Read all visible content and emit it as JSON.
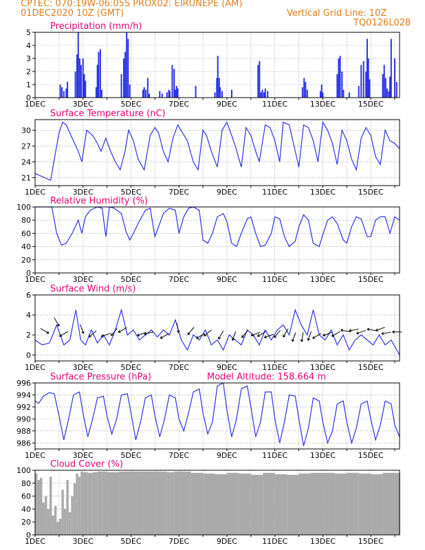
{
  "header": {
    "line1": "CPTEC:   070:19W-06:05S   PROX02: EIRUNEPE (AM)",
    "line2_left": "01DEC2020 10Z (GMT)",
    "line2_right": "Vertical Grid Line: 10Z",
    "line3_right": "TQ0126L028"
  },
  "colors": {
    "header": "#e07b1a",
    "title": "#e0007a",
    "series": "#2a32e6",
    "cloud": "#aaaaaa",
    "axis": "#000000"
  },
  "chart_data": [
    {
      "type": "bar",
      "title": "Precipitation (mm/h)",
      "x_ticks": [
        "1DEC",
        "3DEC",
        "5DEC",
        "7DEC",
        "9DEC",
        "11DEC",
        "13DEC",
        "15DEC"
      ],
      "x_tick_days": [
        1,
        3,
        5,
        7,
        9,
        11,
        13,
        15
      ],
      "x_range_days": [
        1,
        16.2
      ],
      "ylim": [
        0,
        5
      ],
      "y_ticks": [
        0,
        1,
        2,
        3,
        4,
        5
      ],
      "x_days": [
        2.05,
        2.12,
        2.2,
        2.3,
        2.35,
        2.68,
        2.75,
        2.8,
        2.86,
        2.92,
        3.0,
        3.05,
        3.1,
        3.55,
        3.6,
        3.65,
        3.72,
        3.78,
        4.6,
        4.7,
        4.76,
        4.82,
        4.88,
        4.95,
        5.5,
        5.55,
        5.62,
        5.7,
        5.76,
        6.2,
        6.3,
        6.5,
        6.58,
        6.62,
        6.72,
        6.8,
        6.85,
        6.9,
        6.95,
        7.7,
        8.5,
        8.58,
        8.62,
        8.68,
        8.72,
        8.8,
        9.2,
        10.3,
        10.36,
        10.42,
        10.48,
        10.55,
        10.6,
        10.7,
        12.15,
        12.22,
        12.28,
        12.35,
        12.9,
        12.95,
        13.0,
        13.6,
        13.66,
        13.72,
        13.8,
        13.86,
        14.1,
        14.5,
        14.6,
        14.7,
        14.8,
        14.85,
        14.9,
        14.95,
        15.5,
        15.56,
        15.62,
        15.68,
        15.75,
        15.8,
        15.85,
        16.0,
        16.08
      ],
      "values": [
        1.0,
        0.8,
        0.5,
        0.7,
        1.2,
        2.0,
        3.3,
        5.0,
        3.0,
        2.5,
        3.0,
        1.8,
        1.3,
        0.8,
        2.5,
        3.5,
        3.7,
        0.6,
        1.8,
        3.0,
        3.5,
        5.0,
        4.5,
        1.0,
        0.6,
        0.8,
        0.6,
        1.5,
        0.3,
        0.5,
        0.3,
        0.4,
        0.6,
        0.5,
        2.5,
        2.2,
        0.6,
        0.9,
        0.7,
        0.9,
        0.4,
        1.5,
        3.2,
        1.5,
        0.8,
        0.5,
        0.6,
        2.5,
        2.8,
        0.4,
        0.6,
        0.4,
        0.7,
        0.5,
        0.8,
        1.5,
        1.2,
        0.6,
        0.5,
        1.0,
        0.4,
        1.8,
        3.0,
        3.2,
        2.0,
        0.6,
        0.4,
        0.9,
        2.5,
        2.8,
        2.0,
        4.5,
        3.0,
        1.4,
        1.8,
        2.5,
        1.5,
        0.7,
        0.5,
        1.6,
        4.5,
        3.0,
        1.2
      ]
    },
    {
      "type": "line",
      "title": "Surface Temperature (nC)",
      "x_ticks": [
        "1DEC",
        "3DEC",
        "5DEC",
        "7DEC",
        "9DEC",
        "11DEC",
        "13DEC",
        "15DEC"
      ],
      "x_tick_days": [
        1,
        3,
        5,
        7,
        9,
        11,
        13,
        15
      ],
      "x_range_days": [
        1,
        16.2
      ],
      "ylim": [
        19.5,
        32
      ],
      "y_ticks": [
        21,
        24,
        27,
        30
      ],
      "x_days": [
        1,
        1.3,
        1.5,
        1.65,
        1.8,
        2.0,
        2.15,
        2.3,
        2.55,
        2.8,
        2.95,
        3.15,
        3.4,
        3.6,
        3.75,
        3.95,
        4.15,
        4.35,
        4.55,
        4.75,
        4.9,
        5.1,
        5.3,
        5.55,
        5.8,
        6.0,
        6.15,
        6.35,
        6.55,
        6.75,
        6.95,
        7.15,
        7.35,
        7.6,
        7.8,
        8.0,
        8.15,
        8.35,
        8.6,
        8.8,
        9.0,
        9.2,
        9.35,
        9.6,
        9.8,
        10.0,
        10.2,
        10.35,
        10.6,
        10.8,
        11.0,
        11.2,
        11.35,
        11.6,
        11.8,
        12.0,
        12.2,
        12.4,
        12.6,
        12.8,
        13.0,
        13.2,
        13.4,
        13.6,
        13.8,
        14.0,
        14.2,
        14.4,
        14.6,
        14.8,
        15.0,
        15.2,
        15.4,
        15.6,
        15.8,
        16.0,
        16.2
      ],
      "values": [
        21.8,
        21.2,
        20.8,
        20.5,
        24.5,
        29.5,
        31.5,
        31.0,
        28.5,
        26.0,
        24.0,
        30.0,
        29.0,
        27.5,
        26.0,
        28.5,
        26.0,
        24.0,
        22.5,
        26.0,
        30.0,
        28.0,
        24.5,
        22.5,
        29.0,
        30.5,
        29.5,
        26.0,
        24.0,
        28.5,
        31.0,
        29.5,
        28.0,
        24.0,
        22.5,
        30.0,
        29.0,
        26.0,
        23.0,
        30.0,
        31.5,
        29.0,
        27.0,
        23.0,
        30.5,
        29.0,
        26.0,
        24.0,
        31.0,
        30.5,
        28.0,
        24.0,
        31.5,
        31.0,
        27.0,
        23.0,
        31.0,
        30.5,
        28.0,
        24.0,
        31.5,
        30.0,
        27.5,
        23.5,
        30.0,
        28.0,
        24.5,
        22.5,
        28.5,
        30.5,
        29.0,
        25.0,
        23.5,
        30.0,
        28.0,
        27.5,
        26.5
      ]
    },
    {
      "type": "line",
      "title": "Relative Humidity (%)",
      "x_ticks": [
        "1DEC",
        "3DEC",
        "5DEC",
        "7DEC",
        "9DEC",
        "11DEC",
        "13DEC",
        "15DEC"
      ],
      "x_tick_days": [
        1,
        3,
        5,
        7,
        9,
        11,
        13,
        15
      ],
      "x_range_days": [
        1,
        16.2
      ],
      "ylim": [
        0,
        100
      ],
      "y_ticks": [
        0,
        20,
        40,
        60,
        80,
        100
      ],
      "x_days": [
        1,
        1.4,
        1.7,
        1.9,
        2.1,
        2.3,
        2.55,
        2.8,
        2.95,
        3.1,
        3.3,
        3.6,
        3.8,
        3.95,
        4.1,
        4.3,
        4.6,
        4.8,
        4.95,
        5.1,
        5.3,
        5.6,
        5.8,
        6.0,
        6.15,
        6.35,
        6.6,
        6.85,
        7.0,
        7.2,
        7.4,
        7.6,
        7.85,
        8.0,
        8.2,
        8.4,
        8.6,
        8.85,
        9.0,
        9.2,
        9.4,
        9.6,
        9.85,
        10.0,
        10.2,
        10.4,
        10.6,
        10.85,
        11.0,
        11.2,
        11.4,
        11.6,
        11.85,
        12.0,
        12.2,
        12.4,
        12.6,
        12.85,
        13.0,
        13.2,
        13.4,
        13.6,
        13.85,
        14.0,
        14.2,
        14.4,
        14.6,
        14.85,
        15.0,
        15.2,
        15.4,
        15.6,
        15.8,
        16.0,
        16.2
      ],
      "values": [
        100,
        100,
        100,
        60,
        42,
        45,
        60,
        80,
        60,
        85,
        95,
        100,
        98,
        55,
        100,
        98,
        90,
        62,
        50,
        60,
        75,
        95,
        98,
        55,
        70,
        90,
        98,
        95,
        60,
        85,
        98,
        100,
        95,
        50,
        45,
        60,
        85,
        90,
        78,
        45,
        40,
        60,
        82,
        85,
        60,
        40,
        42,
        60,
        85,
        82,
        55,
        40,
        48,
        70,
        88,
        80,
        45,
        40,
        58,
        80,
        85,
        75,
        50,
        45,
        70,
        85,
        82,
        55,
        55,
        80,
        85,
        85,
        60,
        85,
        80
      ]
    },
    {
      "type": "line",
      "title": "Surface Wind (m/s)",
      "x_ticks": [
        "1DEC",
        "3DEC",
        "5DEC",
        "7DEC",
        "9DEC",
        "11DEC",
        "13DEC",
        "15DEC"
      ],
      "x_tick_days": [
        1,
        3,
        5,
        7,
        9,
        11,
        13,
        15
      ],
      "x_range_days": [
        1,
        16.2
      ],
      "ylim": [
        -0.6,
        6
      ],
      "y_ticks": [
        0,
        2,
        4,
        6
      ],
      "x_days": [
        1,
        1.3,
        1.6,
        1.9,
        2.2,
        2.45,
        2.7,
        2.9,
        3.1,
        3.35,
        3.6,
        3.85,
        4.1,
        4.35,
        4.6,
        4.85,
        5.1,
        5.35,
        5.6,
        5.85,
        6.1,
        6.35,
        6.6,
        6.85,
        7.1,
        7.35,
        7.6,
        7.85,
        8.1,
        8.35,
        8.6,
        8.85,
        9.1,
        9.35,
        9.6,
        9.85,
        10.1,
        10.35,
        10.6,
        10.85,
        11.1,
        11.35,
        11.6,
        11.85,
        12.1,
        12.35,
        12.6,
        12.85,
        13.1,
        13.35,
        13.6,
        13.85,
        14.1,
        14.35,
        14.6,
        14.85,
        15.1,
        15.35,
        15.6,
        15.85,
        16.2
      ],
      "values": [
        1.5,
        1.0,
        1.2,
        3.0,
        1.0,
        1.5,
        4.5,
        1.5,
        1.0,
        2.5,
        1.2,
        2.0,
        1.0,
        2.5,
        4.5,
        2.0,
        2.5,
        1.5,
        2.0,
        2.5,
        1.8,
        2.5,
        2.0,
        3.5,
        1.5,
        0.5,
        2.0,
        1.5,
        2.5,
        1.0,
        1.5,
        0.5,
        2.0,
        1.5,
        1.0,
        2.5,
        2.0,
        1.0,
        2.5,
        1.5,
        2.5,
        3.0,
        2.0,
        4.5,
        3.0,
        2.0,
        4.5,
        2.0,
        1.5,
        2.5,
        1.0,
        2.0,
        0.5,
        1.5,
        2.0,
        1.5,
        1.0,
        2.0,
        1.0,
        1.5,
        0.0
      ],
      "arrows_x_days": [
        1.4,
        1.9,
        2.2,
        2.95,
        3.4,
        3.95,
        4.3,
        4.65,
        5.45,
        5.75,
        6.4,
        6.95,
        7.5,
        7.9,
        8.2,
        8.75,
        9.3,
        9.75,
        10.2,
        10.45,
        10.75,
        11.1,
        11.45,
        11.8,
        12.15,
        12.45,
        12.75,
        13.2,
        13.55,
        13.95,
        14.3,
        14.6,
        15.05,
        15.4,
        15.65,
        16.1
      ],
      "arrows_y": [
        2.4,
        3.3,
        2.1,
        2.6,
        2.1,
        2.0,
        2.3,
        2.5,
        2.1,
        2.2,
        1.9,
        2.7,
        2.4,
        1.9,
        2.2,
        2.0,
        1.9,
        2.1,
        2.1,
        2.1,
        1.9,
        2.1,
        2.2,
        1.8,
        1.8,
        1.9,
        1.9,
        2.1,
        2.1,
        2.4,
        2.5,
        2.3,
        2.5,
        2.6,
        2.2,
        2.3
      ],
      "arrows_angle_deg": [
        -30,
        -60,
        210,
        -70,
        220,
        200,
        230,
        210,
        200,
        195,
        210,
        -80,
        230,
        210,
        220,
        240,
        250,
        230,
        200,
        210,
        200,
        230,
        240,
        250,
        260,
        250,
        210,
        200,
        210,
        170,
        190,
        200,
        170,
        200,
        190,
        180
      ]
    },
    {
      "type": "line",
      "title": "Surface Pressure (hPa)",
      "annotation": "Model Altitude: 158.664 m",
      "x_ticks": [
        "1DEC",
        "3DEC",
        "5DEC",
        "7DEC",
        "9DEC",
        "11DEC",
        "13DEC",
        "15DEC"
      ],
      "x_tick_days": [
        1,
        3,
        5,
        7,
        9,
        11,
        13,
        15
      ],
      "x_range_days": [
        1,
        16.2
      ],
      "ylim": [
        985,
        996
      ],
      "y_ticks": [
        986,
        988,
        990,
        992,
        994,
        996
      ],
      "x_days": [
        1,
        1.15,
        1.35,
        1.6,
        1.8,
        2.0,
        2.2,
        2.4,
        2.6,
        2.85,
        3.0,
        3.2,
        3.4,
        3.6,
        3.85,
        4.0,
        4.2,
        4.4,
        4.6,
        4.85,
        5.0,
        5.2,
        5.4,
        5.6,
        5.85,
        6.0,
        6.2,
        6.4,
        6.6,
        6.85,
        7.0,
        7.2,
        7.4,
        7.6,
        7.85,
        8.0,
        8.2,
        8.4,
        8.6,
        8.85,
        9.0,
        9.2,
        9.4,
        9.6,
        9.85,
        10.0,
        10.2,
        10.4,
        10.6,
        10.85,
        11.0,
        11.2,
        11.4,
        11.6,
        11.85,
        12.0,
        12.2,
        12.4,
        12.6,
        12.85,
        13.0,
        13.2,
        13.4,
        13.6,
        13.85,
        14.0,
        14.2,
        14.4,
        14.6,
        14.85,
        15.0,
        15.2,
        15.4,
        15.6,
        15.85,
        16.0,
        16.2
      ],
      "values": [
        993,
        992.6,
        993.8,
        994.4,
        994.2,
        990.5,
        986.5,
        990,
        994,
        994.5,
        991,
        987,
        990,
        993.5,
        993.8,
        990.5,
        987.5,
        990,
        994,
        994.2,
        991,
        986.5,
        989.5,
        993.5,
        994,
        990.5,
        987,
        990,
        994,
        993.5,
        990,
        988,
        991,
        994.5,
        995,
        991,
        987.5,
        989.5,
        995.5,
        996,
        991.5,
        987,
        990,
        995,
        995.5,
        992,
        987,
        989.5,
        994.5,
        994.5,
        990,
        986,
        989.5,
        994,
        993.8,
        990,
        985.5,
        988.5,
        993.5,
        993,
        989.5,
        986,
        988,
        992.5,
        993,
        989.5,
        986,
        988.5,
        992.5,
        993,
        990,
        986.5,
        989,
        993,
        992.5,
        989,
        987
      ]
    },
    {
      "type": "area",
      "title": "Cloud Cover (%)",
      "x_ticks": [
        "1DEC",
        "3DEC",
        "5DEC",
        "7DEC",
        "9DEC",
        "11DEC",
        "13DEC",
        "15DEC"
      ],
      "x_tick_days": [
        1,
        3,
        5,
        7,
        9,
        11,
        13,
        15
      ],
      "x_range_days": [
        1,
        16.2
      ],
      "ylim": [
        0,
        100
      ],
      "y_ticks": [
        0,
        20,
        40,
        60,
        80,
        100
      ],
      "x_days": [
        1,
        1.1,
        1.2,
        1.3,
        1.4,
        1.5,
        1.6,
        1.7,
        1.8,
        1.9,
        2.0,
        2.1,
        2.2,
        2.3,
        2.4,
        2.5,
        2.6,
        2.7,
        2.8,
        2.9,
        3.0,
        3.2,
        3.4,
        3.6,
        3.8,
        4.0,
        4.5,
        5.0,
        5.5,
        6.0,
        6.5,
        6.79,
        6.8,
        6.81,
        7.0,
        7.5,
        8.0,
        8.5,
        9.0,
        9.5,
        10.0,
        10.5,
        11.0,
        11.5,
        12.0,
        12.5,
        13.0,
        13.5,
        14.0,
        14.5,
        15.0,
        15.5,
        16.0,
        16.2
      ],
      "values": [
        95,
        85,
        88,
        50,
        60,
        40,
        90,
        30,
        45,
        20,
        25,
        70,
        40,
        85,
        35,
        60,
        80,
        95,
        90,
        98,
        97,
        96,
        97,
        98,
        98,
        97,
        98,
        98,
        98,
        98,
        97,
        98,
        5,
        98,
        98,
        96,
        95,
        94,
        96,
        95,
        93,
        96,
        94,
        93,
        95,
        96,
        96,
        95,
        96,
        95,
        94,
        96,
        96,
        95
      ]
    }
  ]
}
